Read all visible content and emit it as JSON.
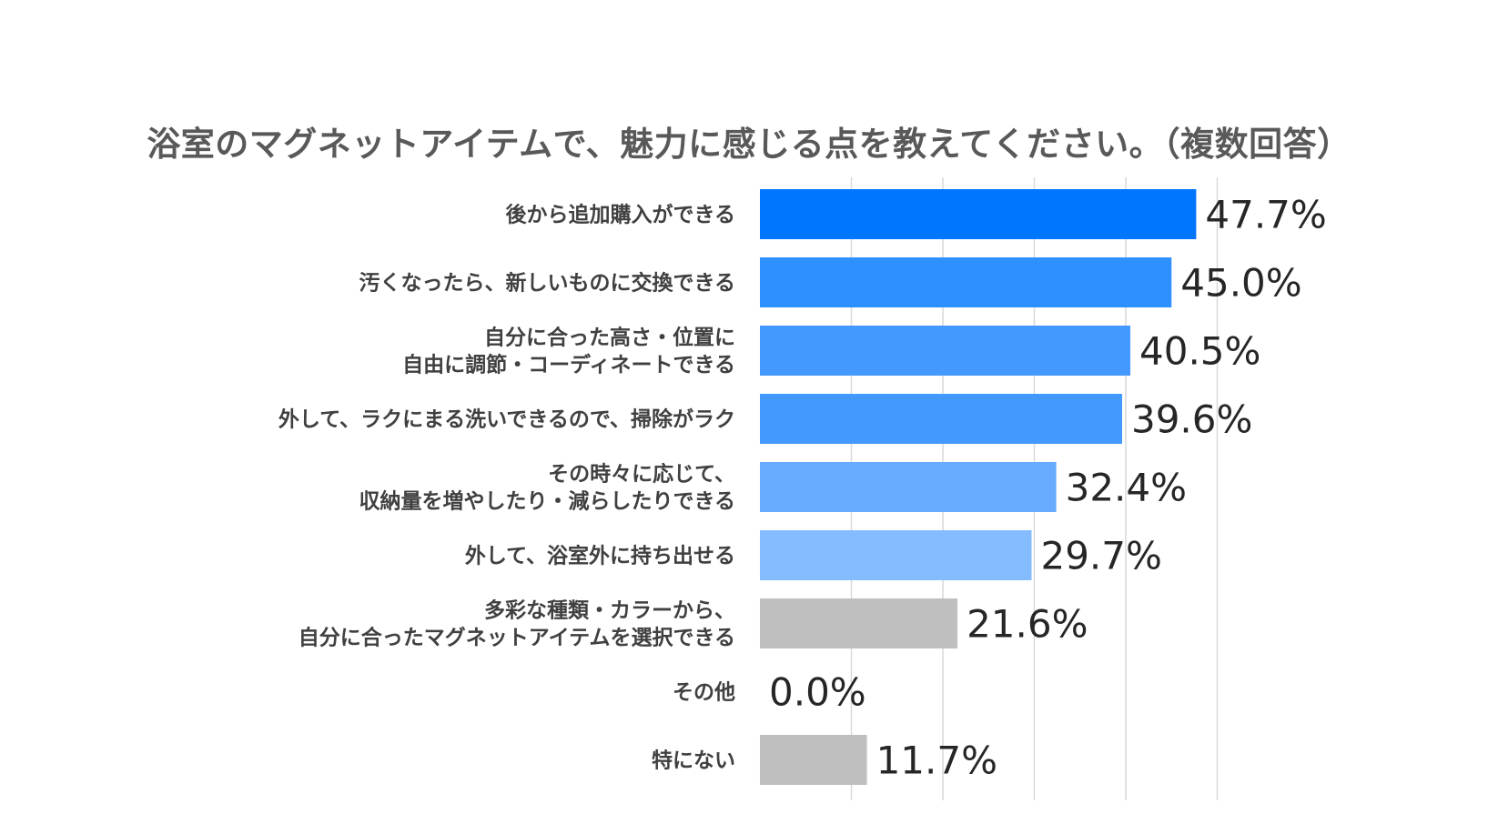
{
  "chart_data": {
    "type": "bar",
    "orientation": "horizontal",
    "title": "浴室のマグネットアイテムで、魅力に感じる点を教えてください。（複数回答）",
    "xlabel": "",
    "ylabel": "",
    "xlim": [
      0,
      50
    ],
    "grid": true,
    "value_suffix": "%",
    "categories": [
      [
        "後から追加購入ができる"
      ],
      [
        "汚くなったら、新しいものに交換できる"
      ],
      [
        "自分に合った高さ・位置に",
        "自由に調節・コーディネートできる"
      ],
      [
        "外して、ラクにまる洗いできるので、掃除がラク"
      ],
      [
        "その時々に応じて、",
        "収納量を増やしたり・減らしたりできる"
      ],
      [
        "外して、浴室外に持ち出せる"
      ],
      [
        "多彩な種類・カラーから、",
        "自分に合ったマグネットアイテムを選択できる"
      ],
      [
        "その他"
      ],
      [
        "特にない"
      ]
    ],
    "values": [
      47.7,
      45.0,
      40.5,
      39.6,
      32.4,
      29.7,
      21.6,
      0.0,
      11.7
    ],
    "value_labels": [
      "47.7%",
      "45.0%",
      "40.5%",
      "39.6%",
      "32.4%",
      "29.7%",
      "21.6%",
      "0.0%",
      "11.7%"
    ],
    "colors": [
      "#0076FF",
      "#2E8FFF",
      "#4499FF",
      "#4499FF",
      "#67ABFF",
      "#84BCFF",
      "#BFBFBF",
      "#BFBFBF",
      "#BFBFBF"
    ],
    "gridline_color": "#D9D9D9"
  }
}
